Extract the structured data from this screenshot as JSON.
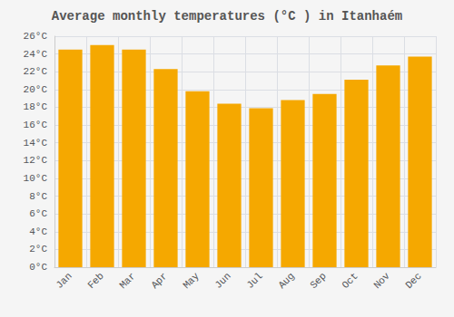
{
  "chart_data": {
    "type": "bar",
    "title": "Average monthly temperatures (°C ) in Itanhaém",
    "categories": [
      "Jan",
      "Feb",
      "Mar",
      "Apr",
      "May",
      "Jun",
      "Jul",
      "Aug",
      "Sep",
      "Oct",
      "Nov",
      "Dec"
    ],
    "values": [
      24.5,
      25.0,
      24.5,
      22.3,
      19.8,
      18.4,
      17.9,
      18.8,
      19.5,
      21.1,
      22.7,
      23.7
    ],
    "color": "#F5A800",
    "ylim": [
      0,
      26
    ],
    "yticks": [
      {
        "value": 0,
        "label": "0°C"
      },
      {
        "value": 2,
        "label": "2°C"
      },
      {
        "value": 4,
        "label": "4°C"
      },
      {
        "value": 6,
        "label": "6°C"
      },
      {
        "value": 8,
        "label": "8°C"
      },
      {
        "value": 10,
        "label": "10°C"
      },
      {
        "value": 12,
        "label": "12°C"
      },
      {
        "value": 14,
        "label": "14°C"
      },
      {
        "value": 16,
        "label": "16°C"
      },
      {
        "value": 18,
        "label": "18°C"
      },
      {
        "value": 20,
        "label": "20°C"
      },
      {
        "value": 22,
        "label": "22°C"
      },
      {
        "value": 24,
        "label": "24°C"
      },
      {
        "value": 26,
        "label": "26°C"
      }
    ],
    "grid": true
  }
}
